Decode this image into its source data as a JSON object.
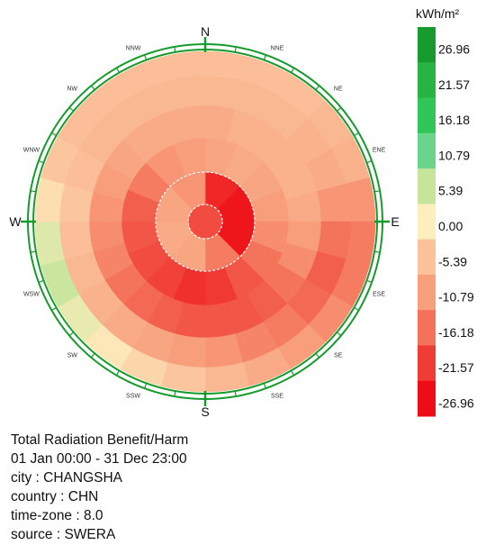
{
  "chart_data": {
    "type": "radial-sky-radiation",
    "unit_label": "kWh/m²",
    "compass": {
      "major": [
        "N",
        "E",
        "S",
        "W"
      ],
      "minor": [
        "NNW",
        "NNE",
        "NW",
        "NE",
        "WNW",
        "ENE",
        "WSW",
        "ESE",
        "SW",
        "SE",
        "SSW",
        "SSE"
      ]
    },
    "legend": {
      "ticks": [
        "26.96",
        "21.57",
        "16.18",
        "10.79",
        "5.39",
        "0.00",
        "-5.39",
        "-10.79",
        "-16.18",
        "-21.57",
        "-26.96"
      ],
      "colors": [
        "#179b2e",
        "#28b443",
        "#31c65a",
        "#6bd48c",
        "#c6e49a",
        "#fdeebd",
        "#fbc29c",
        "#f8a07c",
        "#f4715a",
        "#f03d34",
        "#ee0c16"
      ]
    },
    "rings": 5,
    "sectors_per_ring": [
      1,
      8,
      16,
      24,
      24,
      24
    ],
    "cell_values": [
      [
        -20
      ],
      [
        -24,
        -26,
        -26,
        -15,
        -10,
        -9,
        -10,
        -12
      ],
      [
        -10,
        -9,
        -10,
        -11,
        -13,
        -16,
        -19,
        -22,
        -23,
        -21,
        -20,
        -19,
        -18,
        -15,
        -12,
        -11
      ],
      [
        -9,
        -8,
        -8,
        -8,
        -8,
        -9,
        -11,
        -13,
        -16,
        -18,
        -19,
        -19,
        -19,
        -18,
        -17,
        -16,
        -14,
        -13,
        -12,
        -11,
        -10,
        -9,
        -9,
        -9
      ],
      [
        -7,
        -7,
        -7,
        -8,
        -9,
        -12,
        -16,
        -18,
        -17,
        -15,
        -14,
        -12,
        -11,
        -10,
        -9,
        -8,
        -7,
        -6,
        -5,
        -6,
        -7,
        -7,
        -7,
        -7
      ],
      [
        -6,
        -6,
        -6,
        -7,
        -8,
        -12,
        -15,
        -15,
        -13,
        -11,
        -9,
        -7,
        -5,
        -3,
        -1,
        2,
        5,
        3,
        -2,
        -5,
        -6,
        -6,
        -6,
        -6
      ]
    ],
    "title_lines": [
      "Total Radiation Benefit/Harm",
      "01 Jan 00:00 - 31 Dec 23:00",
      "city : CHANGSHA",
      "country : CHN",
      "time-zone : 8.0",
      "source : SWERA"
    ]
  }
}
